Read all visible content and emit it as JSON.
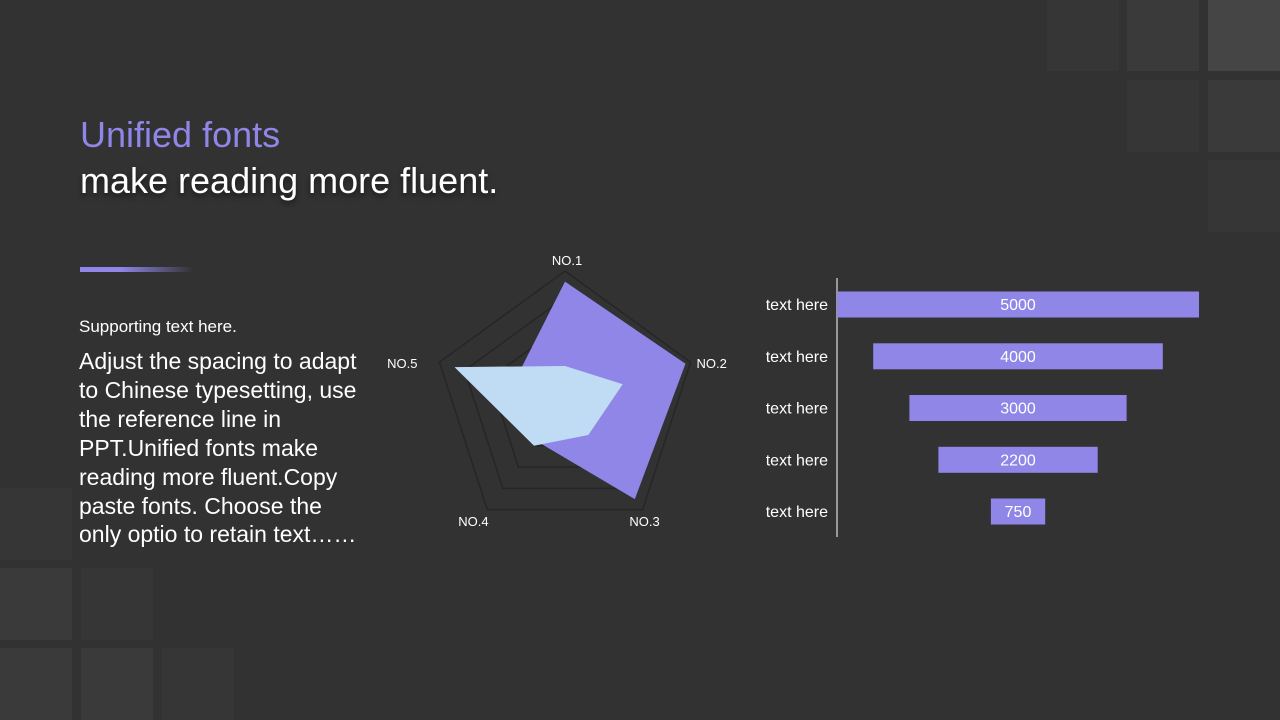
{
  "header": {
    "title_line1": "Unified fonts",
    "title_line2": "make reading more fluent."
  },
  "left_panel": {
    "supporting_text": "Supporting text here.",
    "body_text": "Adjust the spacing to adapt to Chinese typesetting, use the reference line in PPT.Unified fonts make reading more fluent.Copy paste fonts. Choose the only optio to retain text……"
  },
  "colors": {
    "background": "#323232",
    "accent": "#8f86e8",
    "series_light": "#c0dcf5",
    "grid": "#262626"
  },
  "chart_data": [
    {
      "type": "radar",
      "categories": [
        "NO.1",
        "NO.2",
        "NO.3",
        "NO.4",
        "NO.5"
      ],
      "max": 5,
      "grid_levels": 5,
      "series": [
        {
          "values": [
            4.6,
            4.8,
            4.5,
            1.8,
            2.1
          ],
          "color": "#8f86e8"
        },
        {
          "values": [
            1.4,
            2.3,
            1.5,
            2.0,
            4.4
          ],
          "color": "#c0dcf5"
        }
      ]
    },
    {
      "type": "bar",
      "orientation": "horizontal",
      "alignment": "centered",
      "categories": [
        "text here",
        "text here",
        "text here",
        "text here",
        "text here"
      ],
      "values": [
        5000,
        4000,
        3000,
        2200,
        750
      ],
      "data_labels": [
        "5000",
        "4000",
        "3000",
        "2200",
        "750"
      ],
      "color": "#8f86e8"
    }
  ]
}
